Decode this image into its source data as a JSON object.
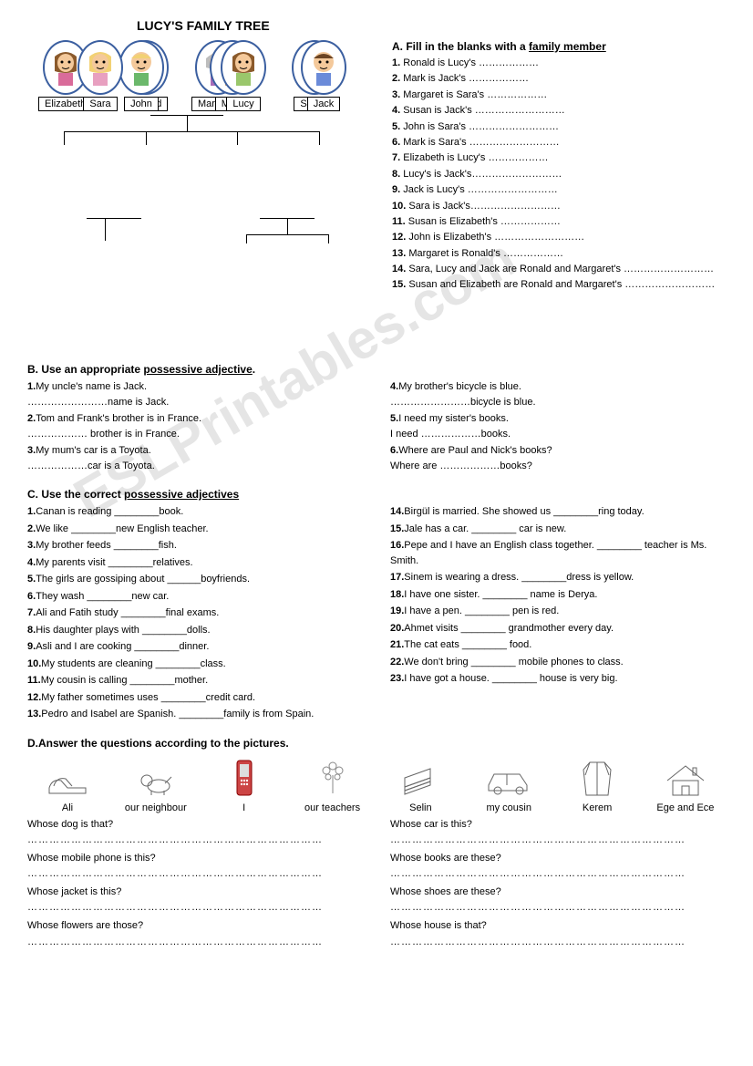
{
  "title": "LUCY'S FAMILY TREE",
  "watermark": "ESLPrintables.com",
  "tree": {
    "ronald": {
      "name": "Ronald",
      "face": "#f4c99b",
      "hair": "#e8e8e8"
    },
    "margaret": {
      "name": "Margaret",
      "face": "#f4c99b",
      "hair": "#bdbdbd"
    },
    "elizabeth": {
      "name": "Elizabeth",
      "face": "#f4c99b",
      "hair": "#8b5a2b"
    },
    "john": {
      "name": "John",
      "face": "#f4c99b",
      "hair": "#f2d174"
    },
    "mark": {
      "name": "Mark",
      "face": "#f4c99b",
      "hair": "#6b4423"
    },
    "susan": {
      "name": "Susan",
      "face": "#f4c99b",
      "hair": "#f2d174"
    },
    "sara": {
      "name": "Sara",
      "face": "#f4c99b",
      "hair": "#f2d174"
    },
    "lucy": {
      "name": "Lucy",
      "face": "#f4c99b",
      "hair": "#8b5a2b"
    },
    "jack": {
      "name": "Jack",
      "face": "#f4c99b",
      "hair": "#6b4423"
    }
  },
  "sectionA": {
    "head_prefix": "A.",
    "head_text": "Fill in the blanks with a ",
    "head_underline": "family member",
    "items": [
      "Ronald is Lucy's ………………",
      "Mark is Jack's ………………",
      "Margaret is Sara's ………………",
      "Susan is Jack's ………………………",
      "John is Sara's ………………………",
      "Mark is Sara's ………………………",
      "Elizabeth is Lucy's ………………",
      "Lucy's is Jack's………………………",
      "Jack is Lucy's ………………………",
      "Sara is Jack's………………………",
      "Susan is Elizabeth's ………………",
      "John is Elizabeth's ………………………",
      "Margaret is Ronald's ………………",
      "Sara, Lucy and Jack are Ronald and Margaret's ………………………",
      "Susan and Elizabeth are Ronald and Margaret's ………………………"
    ]
  },
  "sectionB": {
    "head": "B. Use an appropriate ",
    "head_underline": "possessive adjective",
    "left": [
      {
        "n": "1.",
        "l1": "My uncle's name is Jack.",
        "l2": "……………………name is Jack."
      },
      {
        "n": "2.",
        "l1": "Tom and Frank's brother is in France.",
        "l2": "……………… brother is in France."
      },
      {
        "n": "3.",
        "l1": "My mum's car is a Toyota.",
        "l2": "………………car is a Toyota."
      }
    ],
    "right": [
      {
        "n": "4.",
        "l1": "My brother's bicycle is blue.",
        "l2": "……………………bicycle is blue."
      },
      {
        "n": "5.",
        "l1": "I need my sister's books.",
        "l2": "I need ………………books."
      },
      {
        "n": "6.",
        "l1": "Where are Paul and Nick's books?",
        "l2": "Where are ………………books?"
      }
    ]
  },
  "sectionC": {
    "head": "C. Use the correct ",
    "head_underline": "possessive adjectives",
    "left": [
      "Canan is reading ________book.",
      "We like ________new English teacher.",
      "My brother feeds ________fish.",
      "My parents visit ________relatives.",
      "The girls are gossiping about ______boyfriends.",
      "They wash ________new car.",
      "Ali and Fatih study ________final exams.",
      "His daughter plays with ________dolls.",
      "Asli and I are cooking ________dinner.",
      "My students are cleaning ________class.",
      "My cousin is calling ________mother.",
      "My father sometimes uses ________credit card.",
      "Pedro and Isabel are Spanish. ________family is from Spain."
    ],
    "right": [
      "Birgül is married. She showed us ________ring today.",
      "Jale has a car. ________ car is new.",
      "Pepe and I have an English class together. ________ teacher is Ms. Smith.",
      "Sinem is wearing a dress. ________dress is yellow.",
      "I have one sister. ________ name is Derya.",
      "I have a pen. ________ pen is red.",
      "Ahmet visits ________ grandmother every day.",
      "The cat eats ________ food.",
      "We don't bring ________ mobile phones to class.",
      "I have got a house. ________ house is very big."
    ],
    "right_start": 14
  },
  "sectionD": {
    "head": "D.Answer the questions according to the pictures.",
    "pics": [
      {
        "label": "Ali",
        "icon": "shoes"
      },
      {
        "label": "our neighbour",
        "icon": "dog"
      },
      {
        "label": "I",
        "icon": "phone"
      },
      {
        "label": "our teachers",
        "icon": "flowers"
      },
      {
        "label": "Selin",
        "icon": "books"
      },
      {
        "label": "my cousin",
        "icon": "car"
      },
      {
        "label": "Kerem",
        "icon": "jacket"
      },
      {
        "label": "Ege and Ece",
        "icon": "house"
      }
    ],
    "left_q": [
      "Whose dog is that?",
      "Whose mobile phone is this?",
      "Whose jacket is this?",
      "Whose flowers are those?"
    ],
    "right_q": [
      "Whose car is this?",
      "Whose books are these?",
      "Whose shoes are these?",
      "Whose house is that?"
    ],
    "dotline": "………………………………………………………………………"
  }
}
